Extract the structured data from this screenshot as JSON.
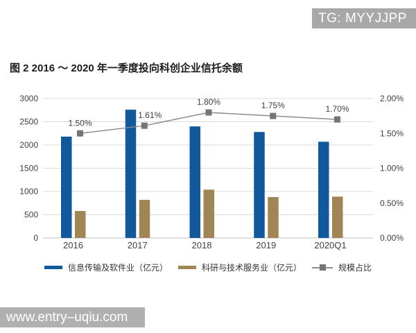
{
  "watermarks": {
    "top": {
      "text": "TG: MYYJJPP",
      "bg": "#a8a8a8",
      "color": "#ffffff"
    },
    "bottom": {
      "text": "www.entry–uqiu.com",
      "bg": "#b0b0b0",
      "color": "#ffffff"
    }
  },
  "title": "图 2  2016 ～ 2020 年一季度投向科创企业信托余额",
  "chart_data": {
    "type": "bar",
    "subtype": "grouped-bars-with-line",
    "categories": [
      "2016",
      "2017",
      "2018",
      "2019",
      "2020Q1"
    ],
    "series": [
      {
        "name": "信息传输及软件业（亿元）",
        "type": "bar",
        "axis": "left",
        "color": "#11599c",
        "values": [
          2180,
          2760,
          2400,
          2280,
          2070
        ]
      },
      {
        "name": "科研与技术服务业（亿元）",
        "type": "bar",
        "axis": "left",
        "color": "#a08655",
        "values": [
          580,
          820,
          1040,
          880,
          890
        ]
      },
      {
        "name": "规模占比",
        "type": "line",
        "axis": "right",
        "color": "#8c8c8c",
        "marker_color": "#757575",
        "values": [
          1.5,
          1.61,
          1.8,
          1.75,
          1.7
        ],
        "labels": [
          "1.50%",
          "1.61%",
          "1.80%",
          "1.75%",
          "1.70%"
        ]
      }
    ],
    "left_axis": {
      "min": 0,
      "max": 3000,
      "ticks": [
        "0",
        "500",
        "1000",
        "1500",
        "2000",
        "2500",
        "3000"
      ]
    },
    "right_axis": {
      "min": 0,
      "max": 2,
      "ticks": [
        "0.00%",
        "0.50%",
        "1.00%",
        "1.50%",
        "2.00%"
      ],
      "unit": "%"
    },
    "grid": true,
    "gridline_color": "#d9d9d9",
    "axis_line_color": "#bfbfbf",
    "legend_position": "bottom"
  }
}
